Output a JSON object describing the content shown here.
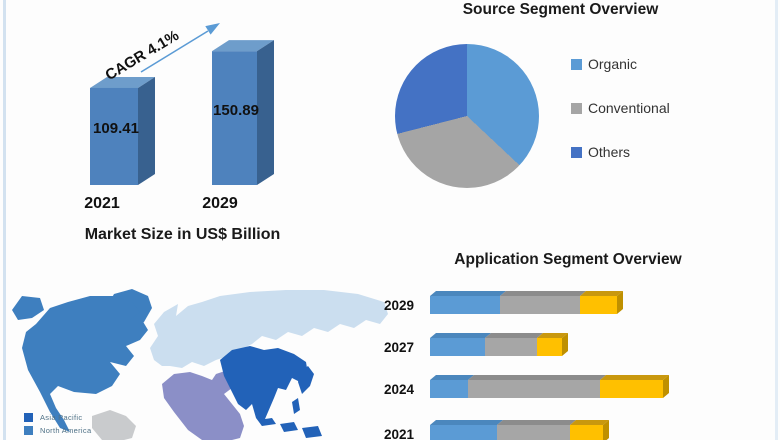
{
  "frame": {
    "left_border_color": "#d3e2f0",
    "right_border_color": "#e3edf6",
    "background": "#fdfdfd"
  },
  "market_chart": {
    "title": "Market Size in US$ Billion",
    "cagr_label": "CAGR 4.1%",
    "bars": [
      {
        "year": "2021",
        "value": "109.41"
      },
      {
        "year": "2029",
        "value": "150.89"
      }
    ],
    "colors": {
      "front": "#4E82BD",
      "side": "#38618F",
      "top": "#6E9DCB",
      "arrow": "#5B9BD5"
    }
  },
  "source_pie": {
    "title": "Source Segment Overview",
    "slices": [
      {
        "label": "Organic",
        "color": "#5B9BD5",
        "percent": 37
      },
      {
        "label": "Conventional",
        "color": "#A5A5A5",
        "percent": 34
      },
      {
        "label": "Others",
        "color": "#4472C4",
        "percent": 29
      }
    ]
  },
  "region_map": {
    "region_colors": {
      "north-america": "#3E7FBF",
      "greenland": "#3E7FBF",
      "south-america": "#C9CBCD",
      "europe-russia": "#CBDEEF",
      "middle-east-africa": "#8B8FC7",
      "asia-pacific": "#2262B8"
    },
    "legend": [
      {
        "label": "Asia Pacific",
        "color": "#2262B8"
      },
      {
        "label": "North America",
        "color": "#3E7FBF"
      }
    ]
  },
  "application_chart": {
    "title": "Application Segment Overview",
    "colors": {
      "fronts": [
        "#5B9BD5",
        "#A6A6A6",
        "#FFC000"
      ],
      "tops": [
        "#4B87BD",
        "#8C8C8C",
        "#C9980E"
      ],
      "side": "#BF9000"
    },
    "rows": [
      {
        "year": "2029",
        "segments": [
          70,
          80,
          37
        ]
      },
      {
        "year": "2027",
        "segments": [
          55,
          52,
          25
        ]
      },
      {
        "year": "2024",
        "segments": [
          38,
          132,
          63
        ]
      },
      {
        "year": "2021",
        "segments": [
          67,
          73,
          33
        ]
      }
    ]
  },
  "chart_data": [
    {
      "type": "bar",
      "title": "Market Size in US$ Billion",
      "categories": [
        "2021",
        "2029"
      ],
      "values": [
        109.41,
        150.89
      ],
      "annotation": "CAGR 4.1%",
      "style": "3d-columns-blue"
    },
    {
      "type": "pie",
      "title": "Source Segment Overview",
      "labels": [
        "Organic",
        "Conventional",
        "Others"
      ],
      "values": [
        37,
        34,
        29
      ],
      "unit": "percent (estimated from slice angles; no data labels shown)",
      "legend_position": "right",
      "colors": [
        "#5B9BD5",
        "#A5A5A5",
        "#4472C4"
      ]
    },
    {
      "type": "bar",
      "subtype": "horizontal-stacked-3d",
      "title": "Application Segment Overview",
      "categories": [
        "2029",
        "2027",
        "2024",
        "2021"
      ],
      "series": [
        {
          "name": "segment-blue",
          "values": [
            70,
            55,
            38,
            67
          ]
        },
        {
          "name": "segment-gray",
          "values": [
            80,
            52,
            132,
            73
          ]
        },
        {
          "name": "segment-yellow",
          "values": [
            37,
            25,
            63,
            33
          ]
        }
      ],
      "unit": "relative length (estimated; no numeric labels shown)",
      "note": "2021 row partially cut off at image bottom"
    },
    {
      "type": "map",
      "title": "",
      "regions": [
        {
          "name": "Asia Pacific",
          "color": "#2262B8"
        },
        {
          "name": "North America",
          "color": "#3E7FBF"
        },
        {
          "name": "Europe / Russia",
          "color": "#CBDEEF"
        },
        {
          "name": "Middle East & Africa",
          "color": "#8B8FC7"
        },
        {
          "name": "South America",
          "color": "#C9CBCD"
        }
      ],
      "legend_visible": [
        "Asia Pacific",
        "North America (clipped at bottom edge)"
      ]
    }
  ]
}
